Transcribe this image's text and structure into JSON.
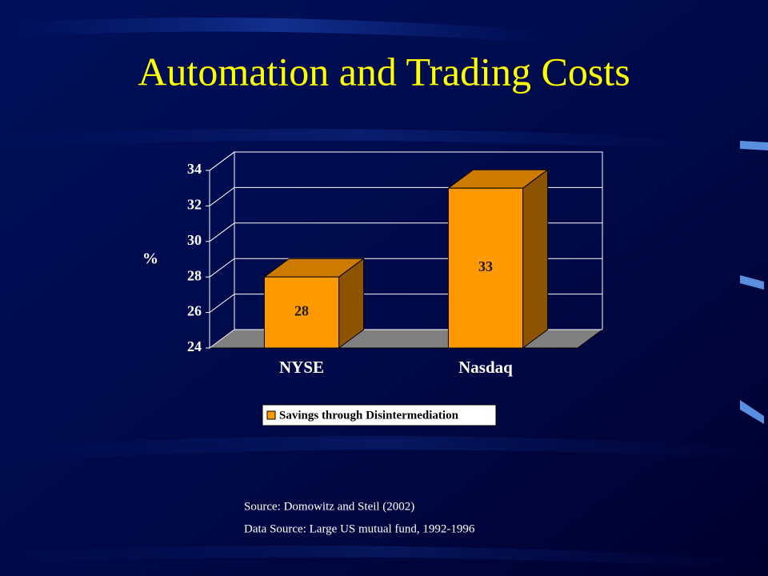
{
  "chart_data": {
    "type": "bar3d",
    "title": "Automation and Trading Costs",
    "categories": [
      "NYSE",
      "Nasdaq"
    ],
    "series": [
      {
        "name": "Savings through Disintermediation",
        "color": "#ff9900",
        "values": [
          28,
          33
        ]
      }
    ],
    "ylabel": "%",
    "ylim": [
      24,
      34
    ],
    "yticks": [
      24,
      26,
      28,
      30,
      32,
      34
    ],
    "grid": true,
    "legend": "bottom",
    "notes": [
      "Source: Domowitz and Steil (2002)",
      "Data Source: Large US mutual fund, 1992-1996"
    ]
  }
}
